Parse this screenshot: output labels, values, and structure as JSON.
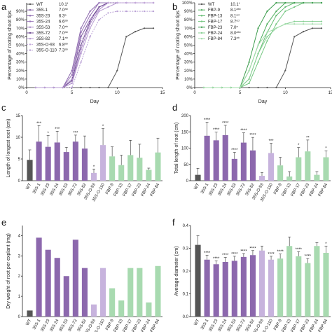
{
  "chart_data": [
    {
      "panel": "a",
      "type": "line",
      "xlabel": "Day",
      "ylabel": "Percentage of rooting shoot tips",
      "xlim": [
        0,
        15
      ],
      "ylim": [
        0,
        100
      ],
      "xticks": [
        "0",
        "5",
        "10",
        "15"
      ],
      "yticks": [
        "0%",
        "10%",
        "20%",
        "30%",
        "40%",
        "50%",
        "60%",
        "70%",
        "80%",
        "90%"
      ],
      "series": [
        {
          "name": "WT",
          "mean_day": "10.1",
          "sup": "f",
          "color": "#555555",
          "dash": "",
          "x": [
            1,
            2,
            3,
            4,
            5,
            6,
            7,
            8,
            9,
            10,
            11,
            12,
            13,
            14
          ],
          "y": [
            0,
            0,
            0,
            0,
            0,
            0,
            0,
            0,
            0,
            20,
            60,
            66,
            70,
            70
          ]
        },
        {
          "name": "35S-1",
          "mean_day": "7.0",
          "sup": "ab",
          "color": "#7e5aa0",
          "dash": "",
          "x": [
            1,
            2,
            3,
            4,
            5,
            6,
            7,
            8,
            9,
            10,
            11,
            12,
            13,
            14
          ],
          "y": [
            0,
            0,
            0,
            0,
            10,
            60,
            80,
            95,
            100,
            100,
            100,
            100,
            100,
            100
          ]
        },
        {
          "name": "35S-23",
          "mean_day": "6.3",
          "sup": "a",
          "color": "#8c68ad",
          "dash": "",
          "x": [
            1,
            2,
            3,
            4,
            5,
            6,
            7,
            8,
            9,
            10,
            11,
            12,
            13,
            14
          ],
          "y": [
            0,
            0,
            0,
            0,
            20,
            70,
            90,
            100,
            100,
            100,
            100,
            100,
            100,
            100
          ]
        },
        {
          "name": "35S-24",
          "mean_day": "6.6",
          "sup": "ab",
          "color": "#9a77ba",
          "dash": "",
          "x": [
            1,
            2,
            3,
            4,
            5,
            6,
            7,
            8,
            9,
            10,
            11,
            12,
            13,
            14
          ],
          "y": [
            0,
            0,
            0,
            0,
            15,
            65,
            85,
            100,
            100,
            100,
            100,
            100,
            100,
            100
          ]
        },
        {
          "name": "35S-53",
          "mean_day": "7.0",
          "sup": "ab",
          "color": "#a887c6",
          "dash": "",
          "x": [
            1,
            2,
            3,
            4,
            5,
            6,
            7,
            8,
            9,
            10,
            11,
            12,
            13,
            14
          ],
          "y": [
            0,
            0,
            0,
            0,
            5,
            45,
            75,
            92,
            100,
            100,
            100,
            100,
            100,
            100
          ]
        },
        {
          "name": "35S-72",
          "mean_day": "7.0",
          "sup": "ab",
          "color": "#6f4b93",
          "dash": "",
          "x": [
            1,
            2,
            3,
            4,
            5,
            6,
            7,
            8,
            9,
            10,
            11,
            12,
            13,
            14
          ],
          "y": [
            0,
            0,
            0,
            0,
            8,
            50,
            78,
            95,
            100,
            100,
            100,
            100,
            100,
            100
          ]
        },
        {
          "name": "35S-82",
          "mean_day": "7.1",
          "sup": "ab",
          "color": "#b597d0",
          "dash": "",
          "x": [
            1,
            2,
            3,
            4,
            5,
            6,
            7,
            8,
            9,
            10,
            11,
            12,
            13,
            14
          ],
          "y": [
            0,
            0,
            0,
            0,
            5,
            40,
            70,
            90,
            95,
            100,
            100,
            100,
            100,
            100
          ]
        },
        {
          "name": "35S-O-93",
          "mean_day": "6.8",
          "sup": "ab",
          "color": "#c4a9db",
          "dash": "2,1.5",
          "x": [
            1,
            2,
            3,
            4,
            5,
            6,
            7,
            8,
            9,
            10,
            11,
            12,
            13,
            14
          ],
          "y": [
            0,
            0,
            0,
            0,
            10,
            55,
            80,
            92,
            100,
            100,
            100,
            100,
            100,
            100
          ]
        },
        {
          "name": "35S-O-110",
          "mean_day": "7.3",
          "sup": "ab",
          "color": "#b89fd4",
          "dash": "2,1.5",
          "x": [
            1,
            2,
            3,
            4,
            5,
            6,
            7,
            8,
            9,
            10,
            11,
            12,
            13,
            14
          ],
          "y": [
            0,
            0,
            0,
            0,
            0,
            30,
            60,
            80,
            88,
            90,
            90,
            90,
            90,
            90
          ]
        }
      ]
    },
    {
      "panel": "b",
      "type": "line",
      "xlabel": "Day",
      "ylabel": "Percentage of rooting shoot tips",
      "xlim": [
        0,
        15
      ],
      "ylim": [
        0,
        100
      ],
      "xticks": [
        "0",
        "5",
        "10",
        "15"
      ],
      "yticks": [
        "0%",
        "10%",
        "20%",
        "30%",
        "40%",
        "50%",
        "60%",
        "70%",
        "80%",
        "90%",
        "100%"
      ],
      "series": [
        {
          "name": "WT",
          "mean_day": "10.1",
          "sup": "f",
          "color": "#555555",
          "dash": "",
          "x": [
            1,
            2,
            3,
            4,
            5,
            6,
            7,
            8,
            9,
            10,
            11,
            12,
            13,
            14
          ],
          "y": [
            0,
            0,
            0,
            0,
            0,
            0,
            0,
            0,
            0,
            20,
            60,
            66,
            70,
            70
          ]
        },
        {
          "name": "FBP-9",
          "mean_day": "8.1",
          "sup": "abc",
          "color": "#4fae5e",
          "dash": "",
          "x": [
            1,
            2,
            3,
            4,
            5,
            6,
            7,
            8,
            9,
            10,
            11,
            12,
            13,
            14
          ],
          "y": [
            0,
            0,
            0,
            0,
            0,
            20,
            50,
            75,
            90,
            100,
            100,
            100,
            100,
            100
          ]
        },
        {
          "name": "FBP-13",
          "mean_day": "8.1",
          "sup": "cd",
          "color": "#62bb70",
          "dash": "",
          "x": [
            1,
            2,
            3,
            4,
            5,
            6,
            7,
            8,
            9,
            10,
            11,
            12,
            13,
            14
          ],
          "y": [
            0,
            0,
            0,
            0,
            0,
            10,
            40,
            65,
            85,
            95,
            100,
            100,
            100,
            100
          ]
        },
        {
          "name": "FBP-17",
          "mean_day": "8.7",
          "sup": "cd",
          "color": "#75c782",
          "dash": "",
          "x": [
            1,
            2,
            3,
            4,
            5,
            6,
            7,
            8,
            9,
            10,
            11,
            12,
            13,
            14
          ],
          "y": [
            0,
            0,
            0,
            0,
            0,
            5,
            30,
            55,
            75,
            90,
            95,
            100,
            100,
            100
          ]
        },
        {
          "name": "FBP-23",
          "mean_day": "7.0",
          "sup": "a",
          "color": "#3d9d4e",
          "dash": "",
          "x": [
            1,
            2,
            3,
            4,
            5,
            6,
            7,
            8,
            9,
            10,
            11,
            12,
            13,
            14
          ],
          "y": [
            0,
            0,
            0,
            0,
            0,
            30,
            70,
            90,
            100,
            100,
            100,
            100,
            100,
            100
          ]
        },
        {
          "name": "FBP-24",
          "mean_day": "8.0",
          "sup": "abc",
          "color": "#88d094",
          "dash": "",
          "x": [
            1,
            2,
            3,
            4,
            5,
            6,
            7,
            8,
            9,
            10,
            11,
            12,
            13,
            14
          ],
          "y": [
            0,
            0,
            0,
            0,
            0,
            10,
            40,
            60,
            70,
            75,
            78,
            78,
            78,
            78
          ]
        },
        {
          "name": "FBP-84",
          "mean_day": "7.3",
          "sup": "ab",
          "color": "#a2dcaa",
          "dash": "",
          "x": [
            1,
            2,
            3,
            4,
            5,
            6,
            7,
            8,
            9,
            10,
            11,
            12,
            13,
            14
          ],
          "y": [
            0,
            0,
            0,
            0,
            0,
            20,
            50,
            65,
            70,
            75,
            75,
            75,
            75,
            75
          ]
        }
      ]
    },
    {
      "panel": "c",
      "type": "bar",
      "ylabel": "Length of longest root (cm)",
      "ylim": [
        0,
        15
      ],
      "yticks": [
        "0",
        "5",
        "10",
        "15"
      ],
      "categories": [
        "WT",
        "35S-1",
        "35S-23",
        "35S-24",
        "35S-53",
        "35S-72",
        "35S-82",
        "35S-O-93",
        "35S-O-110",
        "FBP-9",
        "FBP-13",
        "FBP-17",
        "FBP-23",
        "FBP-24",
        "FBP-84"
      ],
      "values": [
        4.8,
        9.0,
        7.8,
        8.8,
        6.6,
        9.0,
        7.4,
        1.8,
        8.2,
        5.6,
        3.6,
        5.9,
        5.3,
        2.5,
        6.5
      ],
      "errors": [
        2.3,
        3.7,
        2.6,
        2.6,
        1.1,
        1.5,
        2.9,
        0.9,
        3.8,
        2.2,
        2.3,
        3.4,
        3.1,
        0.4,
        3.3
      ],
      "sig": [
        "",
        "***",
        "*",
        "***",
        "",
        "***",
        "",
        "*",
        "*",
        "",
        "",
        "",
        "",
        "",
        ""
      ],
      "colors": [
        "#555555",
        "#8c68ad",
        "#8c68ad",
        "#8c68ad",
        "#8c68ad",
        "#8c68ad",
        "#8c68ad",
        "#c7b3dd",
        "#c7b3dd",
        "#a8dab0",
        "#a8dab0",
        "#a8dab0",
        "#a8dab0",
        "#a8dab0",
        "#a8dab0"
      ]
    },
    {
      "panel": "d",
      "type": "bar",
      "ylabel": "Total length of root (cm)",
      "ylim": [
        0,
        200
      ],
      "yticks": [
        "0",
        "50",
        "100",
        "150",
        "200"
      ],
      "categories": [
        "WT",
        "35S-1",
        "35S-23",
        "35S-24",
        "35S-53",
        "35S-72",
        "35S-82",
        "35S-O-93",
        "35S-O-110",
        "FBP-9",
        "FBP-13",
        "FBP-17",
        "FBP-23",
        "FBP-24",
        "FBP-84"
      ],
      "values": [
        18,
        138,
        124,
        140,
        67,
        117,
        93,
        15,
        85,
        47,
        13,
        72,
        90,
        18,
        72
      ],
      "errors": [
        20,
        42,
        25,
        30,
        20,
        30,
        40,
        10,
        30,
        25,
        15,
        30,
        35,
        10,
        20
      ],
      "sig": [
        "",
        "****",
        "****",
        "****",
        "****",
        "****",
        "****",
        "",
        "***",
        "",
        "",
        "*",
        "**",
        "",
        "*"
      ],
      "colors": [
        "#555555",
        "#8c68ad",
        "#8c68ad",
        "#8c68ad",
        "#8c68ad",
        "#8c68ad",
        "#8c68ad",
        "#c7b3dd",
        "#c7b3dd",
        "#a8dab0",
        "#a8dab0",
        "#a8dab0",
        "#a8dab0",
        "#a8dab0",
        "#a8dab0"
      ]
    },
    {
      "panel": "e",
      "type": "bar",
      "ylabel": "Dry weight of root per explant (mg)",
      "ylim": [
        0,
        4.5
      ],
      "yticks": [
        "0",
        "1",
        "2",
        "3",
        "4"
      ],
      "categories": [
        "WT",
        "35S-1",
        "35S-23",
        "35S-24",
        "35S-53",
        "35S-72",
        "35S-82",
        "35S-O-93",
        "35S-O-110",
        "FBP-9",
        "FBP-13",
        "FBP-17",
        "FBP-23",
        "FBP-24",
        "FBP-84"
      ],
      "values": [
        0.3,
        3.9,
        3.3,
        2.9,
        2.0,
        3.8,
        2.4,
        0.6,
        2.4,
        1.4,
        0.8,
        2.4,
        2.4,
        0.7,
        2.5
      ],
      "errors": [],
      "sig": [
        "",
        "",
        "",
        "",
        "",
        "",
        "",
        "",
        "",
        "",
        "",
        "",
        "",
        "",
        ""
      ],
      "colors": [
        "#555555",
        "#8c68ad",
        "#8c68ad",
        "#8c68ad",
        "#8c68ad",
        "#8c68ad",
        "#8c68ad",
        "#c7b3dd",
        "#c7b3dd",
        "#a8dab0",
        "#a8dab0",
        "#a8dab0",
        "#a8dab0",
        "#a8dab0",
        "#a8dab0"
      ]
    },
    {
      "panel": "f",
      "type": "bar",
      "ylabel": "Average diameter (cm)",
      "ylim": [
        0,
        0.4
      ],
      "yticks": [
        "0.0",
        "0.1",
        "0.2",
        "0.3",
        "0.4"
      ],
      "categories": [
        "WT",
        "35S-1",
        "35S-23",
        "35S-24",
        "35S-53",
        "35S-72",
        "35S-82",
        "35S-O-93",
        "35S-O-110",
        "FBP-9",
        "FBP-13",
        "FBP-17",
        "FBP-23",
        "FBP-24",
        "FBP-84"
      ],
      "values": [
        0.315,
        0.25,
        0.23,
        0.24,
        0.245,
        0.262,
        0.27,
        0.29,
        0.25,
        0.255,
        0.31,
        0.265,
        0.235,
        0.31,
        0.28
      ],
      "errors": [
        0.04,
        0.02,
        0.015,
        0.02,
        0.02,
        0.015,
        0.02,
        0.02,
        0.015,
        0.02,
        0.04,
        0.02,
        0.02,
        0.015,
        0.03
      ],
      "sig": [
        "",
        "****",
        "****",
        "****",
        "****",
        "****",
        "****",
        "",
        "****",
        "****",
        "",
        "****",
        "****",
        "",
        "*"
      ],
      "colors": [
        "#555555",
        "#8c68ad",
        "#8c68ad",
        "#8c68ad",
        "#8c68ad",
        "#8c68ad",
        "#8c68ad",
        "#c7b3dd",
        "#c7b3dd",
        "#a8dab0",
        "#a8dab0",
        "#a8dab0",
        "#a8dab0",
        "#a8dab0",
        "#a8dab0"
      ]
    }
  ]
}
